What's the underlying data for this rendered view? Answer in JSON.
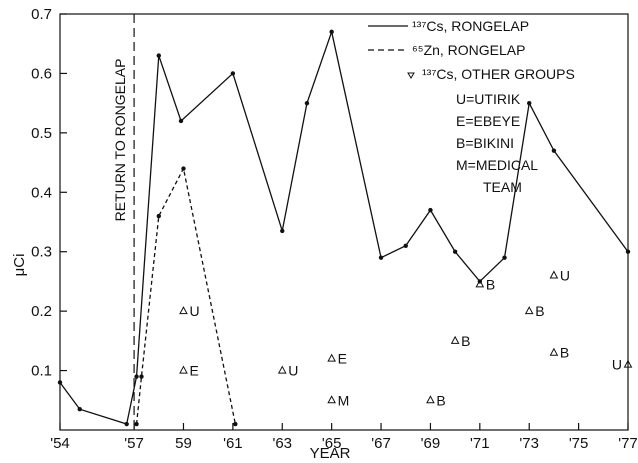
{
  "chart_data": {
    "type": "line",
    "xlabel": "YEAR",
    "ylabel": "μCi",
    "xlim": [
      1954,
      1977
    ],
    "ylim": [
      0,
      0.7
    ],
    "x_ticks": [
      {
        "value": 1954,
        "label": "'54"
      },
      {
        "value": 1957,
        "label": "'57"
      },
      {
        "value": 1959,
        "label": "59"
      },
      {
        "value": 1961,
        "label": "'61"
      },
      {
        "value": 1963,
        "label": "'63"
      },
      {
        "value": 1965,
        "label": "'65"
      },
      {
        "value": 1967,
        "label": "'67"
      },
      {
        "value": 1969,
        "label": "'69"
      },
      {
        "value": 1971,
        "label": "'71"
      },
      {
        "value": 1973,
        "label": "'73"
      },
      {
        "value": 1975,
        "label": "'75"
      },
      {
        "value": 1977,
        "label": "'77"
      }
    ],
    "y_ticks": [
      {
        "value": 0.1,
        "label": "0.1"
      },
      {
        "value": 0.2,
        "label": "0.2"
      },
      {
        "value": 0.3,
        "label": "0.3"
      },
      {
        "value": 0.4,
        "label": "0.4"
      },
      {
        "value": 0.5,
        "label": "0.5"
      },
      {
        "value": 0.6,
        "label": "0.6"
      },
      {
        "value": 0.7,
        "label": "0.7"
      }
    ],
    "series": [
      {
        "name": "¹³⁷Cs, RONGELAP",
        "style": "solid",
        "points": [
          [
            1954,
            0.08
          ],
          [
            1954.8,
            0.035
          ],
          [
            1956.7,
            0.01
          ],
          [
            1957.1,
            0.09
          ],
          [
            1958,
            0.63
          ],
          [
            1958.9,
            0.52
          ],
          [
            1961,
            0.6
          ],
          [
            1963,
            0.335
          ],
          [
            1964,
            0.55
          ],
          [
            1965,
            0.67
          ],
          [
            1967,
            0.29
          ],
          [
            1968,
            0.31
          ],
          [
            1969,
            0.37
          ],
          [
            1970,
            0.3
          ],
          [
            1971,
            0.25
          ],
          [
            1972,
            0.29
          ],
          [
            1973,
            0.55
          ],
          [
            1974,
            0.47
          ],
          [
            1977,
            0.3
          ]
        ]
      },
      {
        "name": "⁶⁵Zn, RONGELAP",
        "style": "dashed",
        "points": [
          [
            1957.1,
            0.01
          ],
          [
            1957.3,
            0.09
          ],
          [
            1958,
            0.36
          ],
          [
            1959,
            0.44
          ],
          [
            1961.1,
            0.01
          ]
        ]
      },
      {
        "name": "¹³⁷Cs, OTHER GROUPS",
        "style": "triangle-markers",
        "points": [
          {
            "x": 1959,
            "y": 0.2,
            "label": "U"
          },
          {
            "x": 1959,
            "y": 0.1,
            "label": "E"
          },
          {
            "x": 1963,
            "y": 0.1,
            "label": "U"
          },
          {
            "x": 1965,
            "y": 0.12,
            "label": "E"
          },
          {
            "x": 1965,
            "y": 0.05,
            "label": "M"
          },
          {
            "x": 1969,
            "y": 0.05,
            "label": "B"
          },
          {
            "x": 1970,
            "y": 0.15,
            "label": "B"
          },
          {
            "x": 1971,
            "y": 0.245,
            "label": "B"
          },
          {
            "x": 1973,
            "y": 0.2,
            "label": "B"
          },
          {
            "x": 1974,
            "y": 0.26,
            "label": "U"
          },
          {
            "x": 1974,
            "y": 0.13,
            "label": "B"
          },
          {
            "x": 1977,
            "y": 0.11,
            "label": "U",
            "label_side": "left"
          }
        ]
      }
    ],
    "legend_position": "top-right",
    "legend_key": [
      "U=UTIRIK",
      "E=EBEYE",
      "B=BIKINI",
      "M=MEDICAL",
      "TEAM"
    ],
    "annotations": [
      {
        "text": "RETURN TO RONGELAP",
        "x": 1957,
        "orientation": "vertical",
        "line": "dashed"
      }
    ],
    "grid": false
  }
}
